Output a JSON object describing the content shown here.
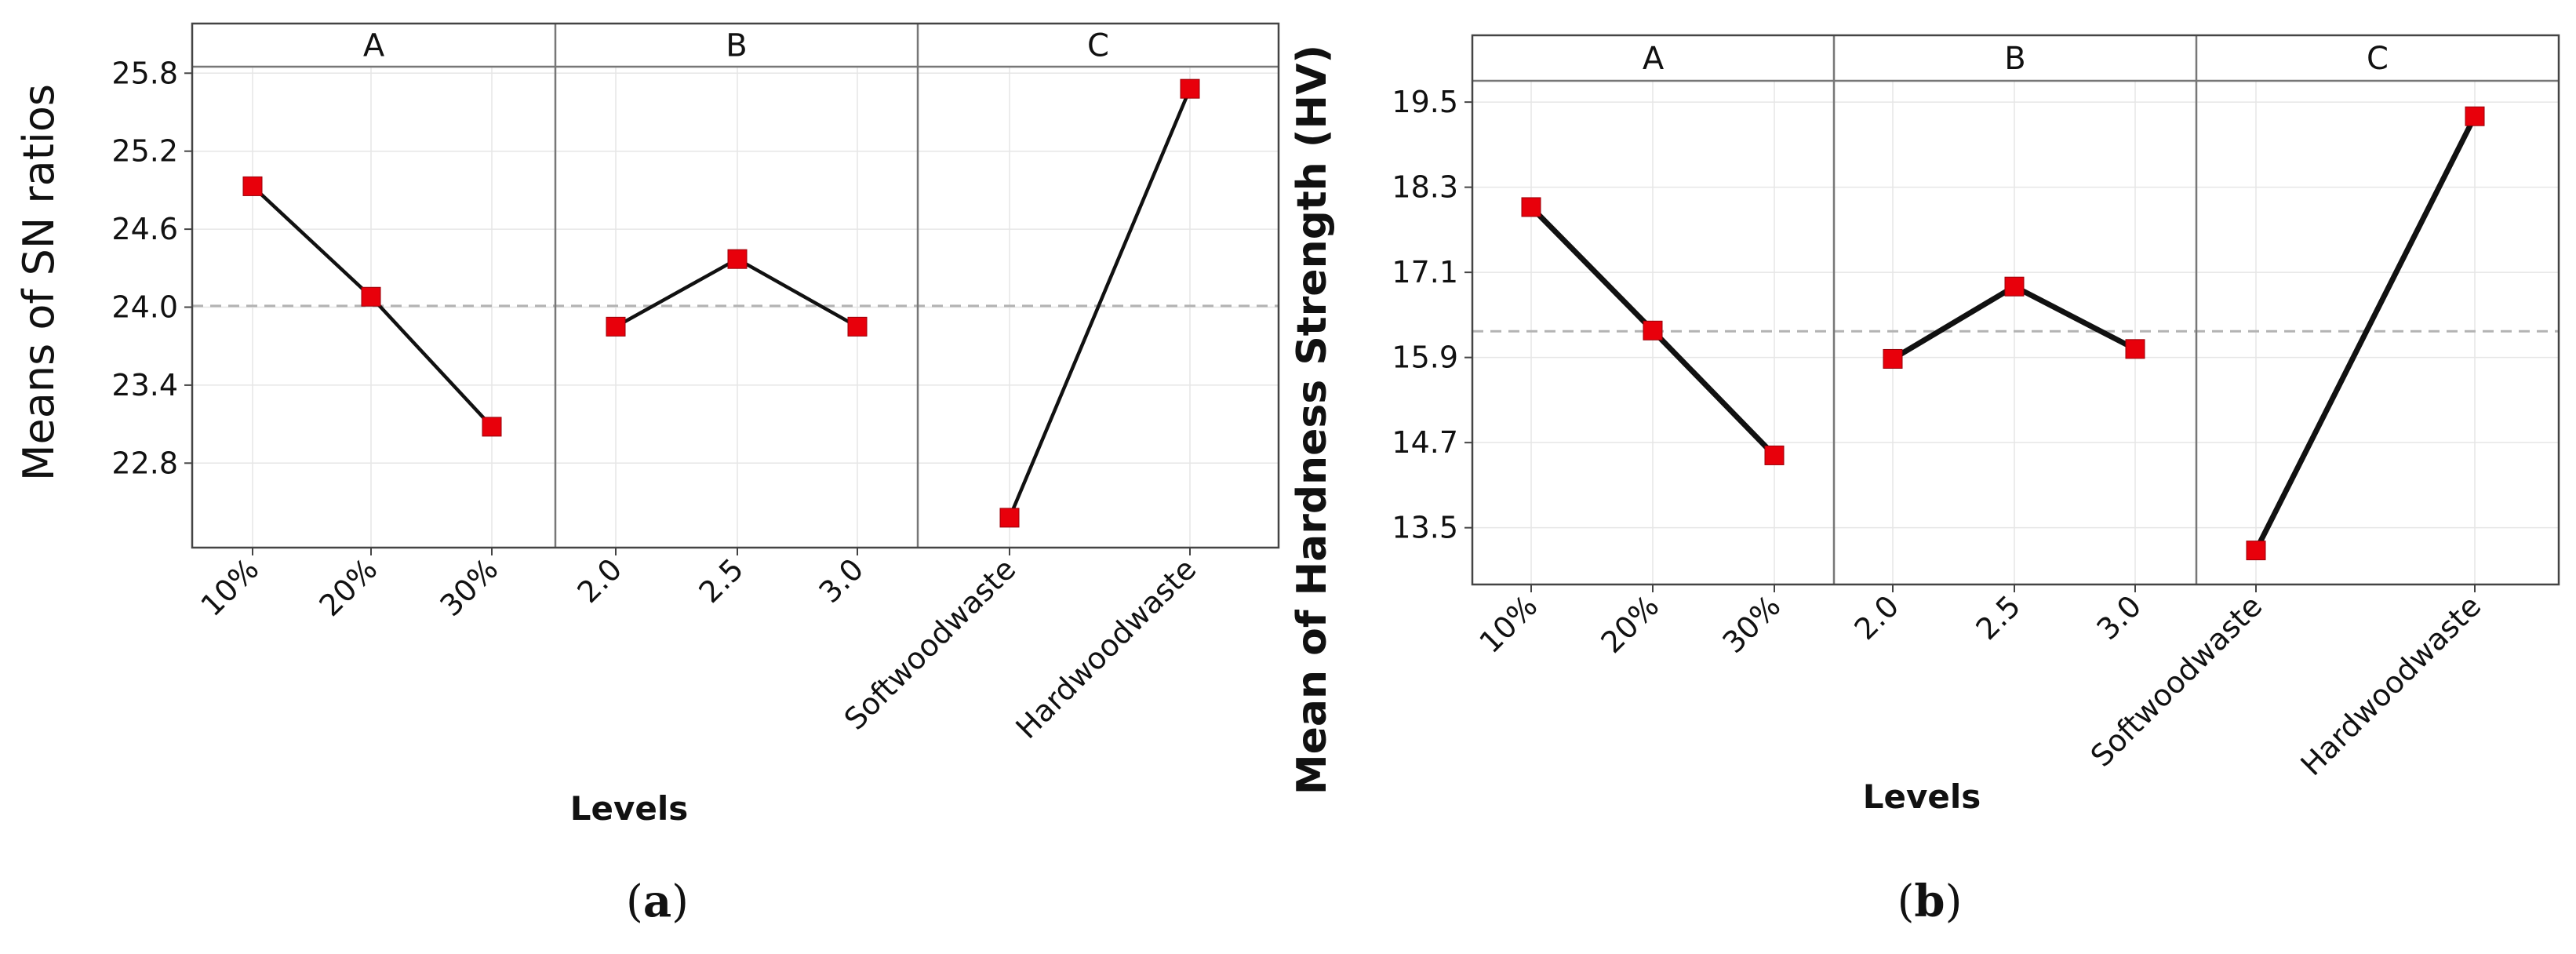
{
  "chart_data": [
    {
      "type": "line",
      "caption": "a",
      "ylabel": "Means of SN ratios",
      "xlabel": "Levels",
      "ylim": [
        22.15,
        25.85
      ],
      "yticks": [
        "22.8",
        "23.4",
        "24.0",
        "24.6",
        "25.2",
        "25.8"
      ],
      "mean_line": 24.01,
      "grid": true,
      "factors": [
        {
          "name": "A",
          "categories": [
            "10%",
            "20%",
            "30%"
          ],
          "values": [
            24.93,
            24.08,
            23.08
          ]
        },
        {
          "name": "B",
          "categories": [
            "2.0",
            "2.5",
            "3.0"
          ],
          "values": [
            23.85,
            24.37,
            23.85
          ]
        },
        {
          "name": "C",
          "categories": [
            "Softwoodwaste",
            "Hardwoodwaste"
          ],
          "values": [
            22.38,
            25.68
          ]
        }
      ],
      "colors": {
        "marker": "#e8000b",
        "line": "#111111",
        "mean": "#b3b3b3"
      }
    },
    {
      "type": "line",
      "caption": "b",
      "ylabel": "Mean of Hardness Strength (HV)",
      "xlabel": "Levels",
      "ylim": [
        12.7,
        19.8
      ],
      "yticks": [
        "13.5",
        "14.7",
        "15.9",
        "17.1",
        "18.3",
        "19.5"
      ],
      "mean_line": 16.27,
      "grid": true,
      "factors": [
        {
          "name": "A",
          "categories": [
            "10%",
            "20%",
            "30%"
          ],
          "values": [
            18.02,
            16.28,
            14.52
          ]
        },
        {
          "name": "B",
          "categories": [
            "2.0",
            "2.5",
            "3.0"
          ],
          "values": [
            15.88,
            16.9,
            16.02
          ]
        },
        {
          "name": "C",
          "categories": [
            "Softwoodwaste",
            "Hardwoodwaste"
          ],
          "values": [
            13.18,
            19.3
          ]
        }
      ],
      "colors": {
        "marker": "#e8000b",
        "line": "#111111",
        "mean": "#b3b3b3"
      }
    }
  ]
}
